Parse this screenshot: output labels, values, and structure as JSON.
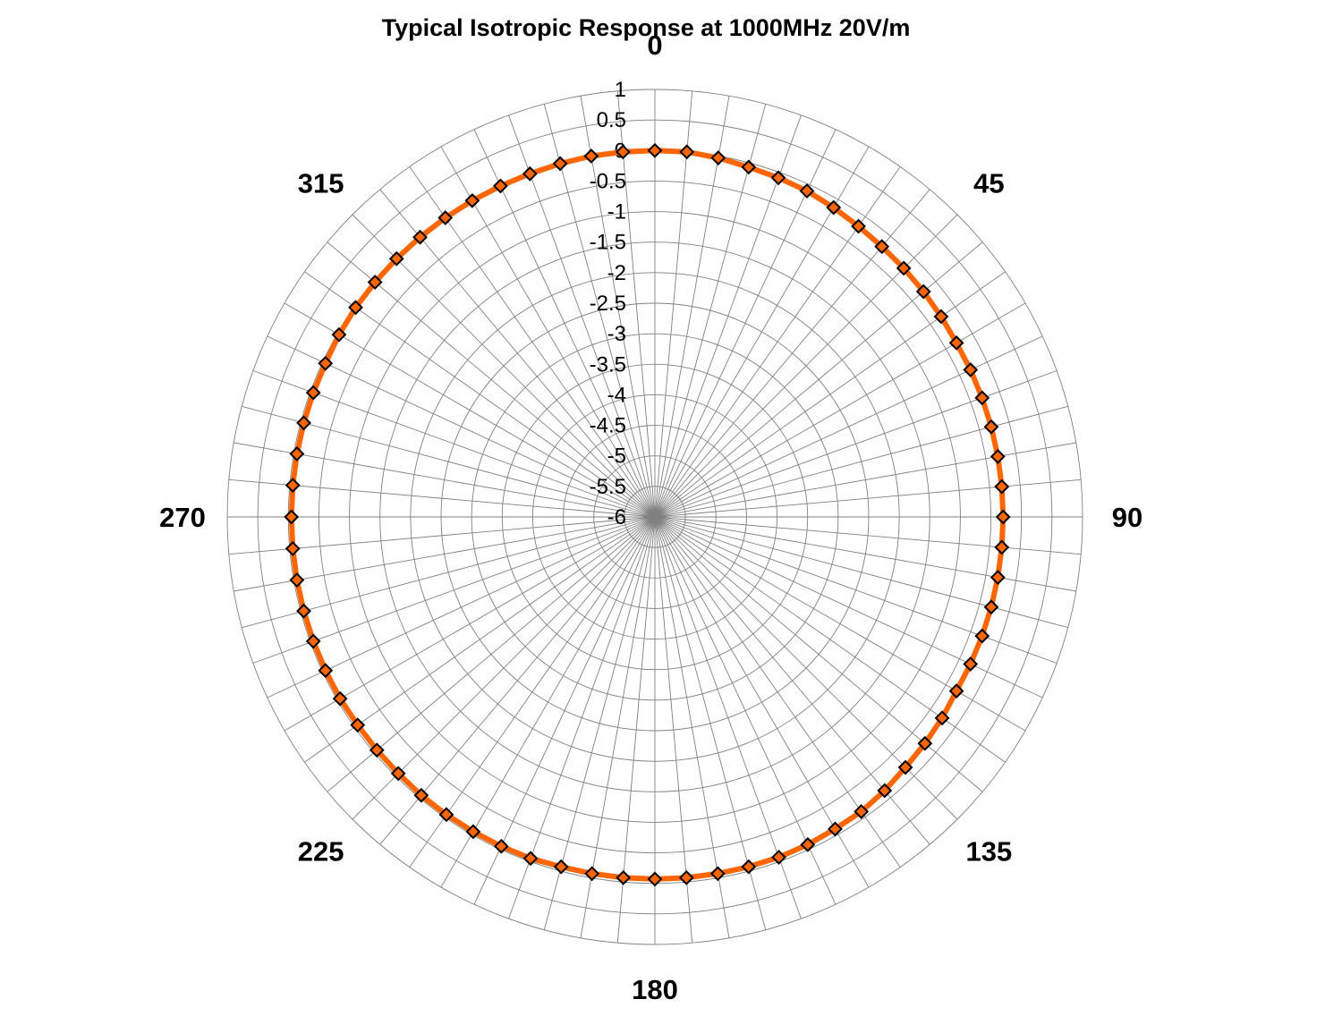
{
  "chart_data": {
    "type": "polar-line",
    "title": "Typical Isotropic Response at 1000MHz 20V/m",
    "angle_unit": "degrees",
    "angle_labels": [
      "0",
      "45",
      "90",
      "135",
      "180",
      "225",
      "270",
      "315"
    ],
    "angle_label_values": [
      0,
      45,
      90,
      135,
      180,
      225,
      270,
      315
    ],
    "radial_ticks": [
      "1",
      "0.5",
      "0",
      "-0.5",
      "-1",
      "-1.5",
      "-2",
      "-2.5",
      "-3",
      "-3.5",
      "-4",
      "-4.5",
      "-5",
      "-5.5",
      "-6"
    ],
    "radial_tick_values": [
      1,
      0.5,
      0,
      -0.5,
      -1,
      -1.5,
      -2,
      -2.5,
      -3,
      -3.5,
      -4,
      -4.5,
      -5,
      -5.5,
      -6
    ],
    "rlim": [
      -6,
      1
    ],
    "angular_gridline_step": 5,
    "grid": true,
    "legend": "none",
    "colors": {
      "line": "#ff6600",
      "marker_fill": "#ff6600",
      "marker_edge": "#000000",
      "grid": "#808080"
    },
    "series": [
      {
        "marker": "diamond",
        "angles": [
          0,
          5,
          10,
          15,
          20,
          25,
          30,
          35,
          40,
          45,
          50,
          55,
          60,
          65,
          70,
          75,
          80,
          85,
          90,
          95,
          100,
          105,
          110,
          115,
          120,
          125,
          130,
          135,
          140,
          145,
          150,
          155,
          160,
          165,
          170,
          175,
          180,
          185,
          190,
          195,
          200,
          205,
          210,
          215,
          220,
          225,
          230,
          235,
          240,
          245,
          250,
          255,
          260,
          265,
          270,
          275,
          280,
          285,
          290,
          295,
          300,
          305,
          310,
          315,
          320,
          325,
          330,
          335,
          340,
          345,
          350,
          355
        ],
        "values": [
          0.0,
          0.0,
          -0.03,
          -0.07,
          -0.09,
          -0.11,
          -0.15,
          -0.19,
          -0.22,
          -0.24,
          -0.26,
          -0.28,
          -0.3,
          -0.3,
          -0.3,
          -0.3,
          -0.3,
          -0.3,
          -0.3,
          -0.3,
          -0.3,
          -0.3,
          -0.3,
          -0.3,
          -0.3,
          -0.26,
          -0.23,
          -0.2,
          -0.15,
          -0.11,
          -0.1,
          -0.08,
          -0.07,
          -0.07,
          -0.07,
          -0.07,
          -0.07,
          -0.07,
          -0.07,
          -0.07,
          -0.05,
          -0.05,
          -0.05,
          -0.05,
          -0.05,
          -0.06,
          -0.06,
          -0.06,
          -0.05,
          -0.05,
          -0.05,
          -0.05,
          -0.05,
          -0.05,
          -0.05,
          -0.05,
          -0.05,
          -0.05,
          -0.05,
          -0.05,
          -0.03,
          -0.02,
          -0.02,
          -0.02,
          -0.02,
          -0.02,
          -0.02,
          -0.02,
          -0.02,
          -0.01,
          0.0,
          0.0
        ]
      }
    ]
  }
}
